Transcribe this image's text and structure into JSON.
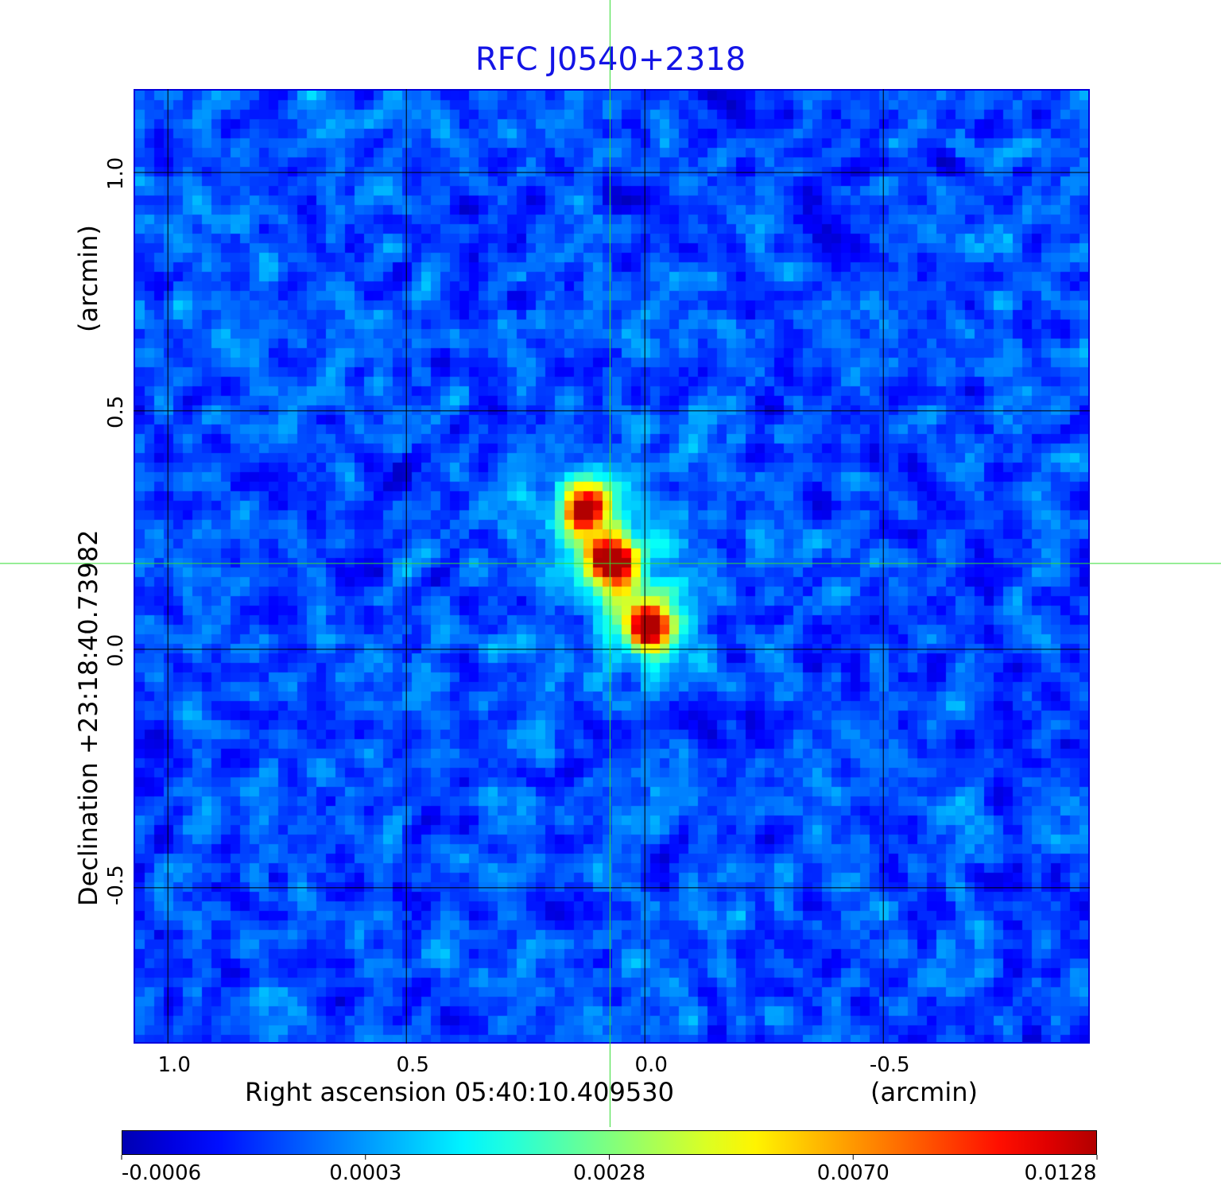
{
  "chart_data": {
    "type": "heatmap",
    "title": "RFC J0540+2318",
    "xlabel": "Right ascension  05:40:10.409530",
    "xunit": "(arcmin)",
    "ylabel": "Declination  +23:18:40.73982",
    "yunit": "(arcmin)",
    "xlim": [
      1.072,
      -0.933
    ],
    "ylim": [
      -0.827,
      1.175
    ],
    "xticks": [
      {
        "v": 1.0,
        "label": "1.0"
      },
      {
        "v": 0.5,
        "label": "0.5"
      },
      {
        "v": 0.0,
        "label": "0.0"
      },
      {
        "v": -0.5,
        "label": "-0.5"
      }
    ],
    "yticks": [
      {
        "v": 1.0,
        "label": "1.0"
      },
      {
        "v": 0.5,
        "label": "0.5"
      },
      {
        "v": 0.0,
        "label": "0.0"
      },
      {
        "v": -0.5,
        "label": "-0.5"
      }
    ],
    "grid": true,
    "crosshair": {
      "x": 0.073,
      "y": 0.18
    },
    "sources": [
      {
        "x": 0.127,
        "y": 0.295,
        "peak": 0.85
      },
      {
        "x": 0.068,
        "y": 0.185,
        "peak": 1.0
      },
      {
        "x": -0.012,
        "y": 0.048,
        "peak": 0.93
      }
    ],
    "colormap": "jet",
    "colorbar": {
      "ticks": [
        "-0.0006",
        "0.0003",
        "0.0028",
        "0.0070",
        "0.0128"
      ],
      "min": -0.0006,
      "max": 0.0128
    }
  }
}
